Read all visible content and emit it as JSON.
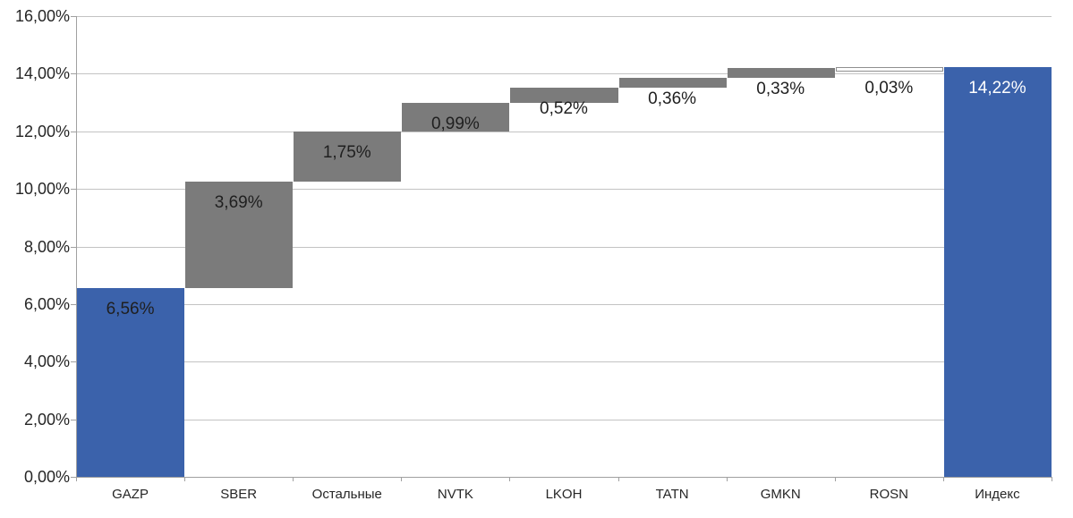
{
  "chart_data": {
    "type": "bar",
    "subtype": "waterfall",
    "title": "",
    "xlabel": "",
    "ylabel": "",
    "grid": true,
    "legend": false,
    "number_format": "percent_comma_decimal",
    "categories": [
      "GAZP",
      "SBER",
      "Остальные",
      "NVTK",
      "LKOH",
      "TATN",
      "GMKN",
      "ROSN",
      "Индекс"
    ],
    "bars": [
      {
        "category": "GAZP",
        "value": 6.56,
        "start": 0,
        "end": 6.56,
        "label": "6,56%",
        "color": "blue",
        "label_color": "dark"
      },
      {
        "category": "SBER",
        "value": 3.69,
        "start": 6.56,
        "end": 10.25,
        "label": "3,69%",
        "color": "gray",
        "label_color": "dark"
      },
      {
        "category": "Остальные",
        "value": 1.75,
        "start": 10.25,
        "end": 12.0,
        "label": "1,75%",
        "color": "gray",
        "label_color": "dark"
      },
      {
        "category": "NVTK",
        "value": 0.99,
        "start": 12.0,
        "end": 12.99,
        "label": "0,99%",
        "color": "gray",
        "label_color": "dark"
      },
      {
        "category": "LKOH",
        "value": 0.52,
        "start": 12.99,
        "end": 13.51,
        "label": "0,52%",
        "color": "gray",
        "label_color": "dark"
      },
      {
        "category": "TATN",
        "value": 0.36,
        "start": 13.51,
        "end": 13.87,
        "label": "0,36%",
        "color": "gray",
        "label_color": "dark"
      },
      {
        "category": "GMKN",
        "value": 0.33,
        "start": 13.87,
        "end": 14.2,
        "label": "0,33%",
        "color": "gray",
        "label_color": "dark"
      },
      {
        "category": "ROSN",
        "value": 0.03,
        "start": 14.19,
        "end": 14.22,
        "label": "0,03%",
        "color": "gray",
        "label_color": "dark",
        "style": "outline"
      },
      {
        "category": "Индекс",
        "value": 14.22,
        "start": 0,
        "end": 14.22,
        "label": "14,22%",
        "color": "blue",
        "label_color": "light"
      }
    ],
    "y_axis": {
      "min": 0,
      "max": 16,
      "step": 2,
      "ticks": [
        {
          "value": 0,
          "label": "0,00%"
        },
        {
          "value": 2,
          "label": "2,00%"
        },
        {
          "value": 4,
          "label": "4,00%"
        },
        {
          "value": 6,
          "label": "6,00%"
        },
        {
          "value": 8,
          "label": "8,00%"
        },
        {
          "value": 10,
          "label": "10,00%"
        },
        {
          "value": 12,
          "label": "12,00%"
        },
        {
          "value": 14,
          "label": "14,00%"
        },
        {
          "value": 16,
          "label": "16,00%"
        }
      ]
    },
    "colors": {
      "blue": "#3B62AB",
      "gray": "#7B7B7B",
      "grid": "#C3C3C3",
      "axis": "#A0A0A0",
      "outline_border": "#8F8F8F",
      "outline_fill": "#FFFFFF",
      "label_dark": "#1F1F1F",
      "label_light": "#FFFFFF"
    }
  }
}
